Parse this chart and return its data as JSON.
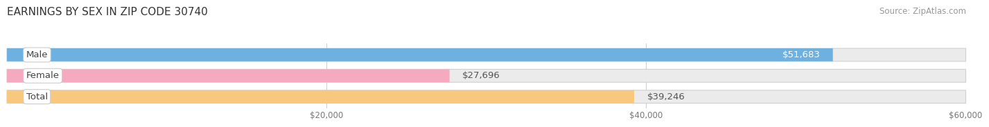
{
  "title": "EARNINGS BY SEX IN ZIP CODE 30740",
  "source": "Source: ZipAtlas.com",
  "categories": [
    "Male",
    "Female",
    "Total"
  ],
  "values": [
    51683,
    27696,
    39246
  ],
  "bar_colors": [
    "#6eb0df",
    "#f5aac0",
    "#f7c87e"
  ],
  "bar_bg_color": "#ebebeb",
  "value_labels": [
    "$51,683",
    "$27,696",
    "$39,246"
  ],
  "value_label_inside": [
    true,
    false,
    false
  ],
  "xmin": 0,
  "xmax": 60000,
  "xticks": [
    20000,
    40000,
    60000
  ],
  "xtick_labels": [
    "$20,000",
    "$40,000",
    "$60,000"
  ],
  "title_fontsize": 11,
  "source_fontsize": 8.5,
  "cat_label_fontsize": 9.5,
  "value_fontsize": 9.5,
  "tick_fontsize": 8.5,
  "background_color": "#ffffff",
  "bar_height": 0.62,
  "grid_color": "#d0d0d0",
  "cat_label_color": "#444444",
  "value_inside_color": "#ffffff",
  "value_outside_color": "#555555",
  "tick_color": "#777777"
}
